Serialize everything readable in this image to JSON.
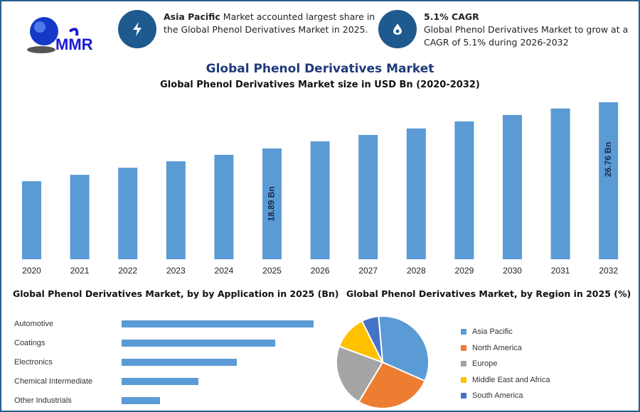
{
  "logo": {
    "text": "MMR"
  },
  "info1": {
    "icon": "lightning-icon",
    "bold": "Asia Pacific",
    "text": " Market accounted largest share in",
    "line2": "the Global Phenol Derivatives Market in 2025."
  },
  "info2": {
    "icon": "drop-icon",
    "bold": "5.1% CAGR",
    "line1": "Global Phenol Derivatives Market to grow at a",
    "line2": "CAGR of 5.1% during 2026-2032"
  },
  "colors": {
    "accent": "#1f5a8e",
    "bar": "#5b9bd5",
    "title": "#1f3a7a"
  },
  "chart_data": [
    {
      "type": "bar",
      "title": "Global Phenol Derivatives Market",
      "subtitle": "Global Phenol Derivatives Market size in USD Bn (2020-2032)",
      "categories": [
        "2020",
        "2021",
        "2022",
        "2023",
        "2024",
        "2025",
        "2026",
        "2027",
        "2028",
        "2029",
        "2030",
        "2031",
        "2032"
      ],
      "values": [
        13.3,
        14.4,
        15.6,
        16.7,
        17.8,
        18.89,
        20.1,
        21.2,
        22.3,
        23.5,
        24.6,
        25.7,
        26.76
      ],
      "data_labels": {
        "2025": "18.89 Bn",
        "2032": "26.76 Bn"
      },
      "ylim": [
        0,
        28
      ],
      "grid": false
    },
    {
      "type": "bar",
      "orientation": "horizontal",
      "title": "Global Phenol Derivatives Market, by by Application in 2025 (Bn)",
      "categories": [
        "Automotive",
        "Coatings",
        "Electronics",
        "Chemical Intermediate",
        "Other Industrials"
      ],
      "values": [
        5,
        4,
        3,
        2,
        1
      ]
    },
    {
      "type": "pie",
      "title": "Global Phenol Derivatives Market, by Region in 2025 (%)",
      "legend": "right",
      "categories": [
        "Asia Pacific",
        "North America",
        "Europe",
        "Middle East and Africa",
        "South America"
      ],
      "values": [
        33,
        27,
        22,
        12,
        6
      ],
      "colors": [
        "#5b9bd5",
        "#ed7d31",
        "#a5a5a5",
        "#ffc000",
        "#4472c4"
      ]
    }
  ]
}
